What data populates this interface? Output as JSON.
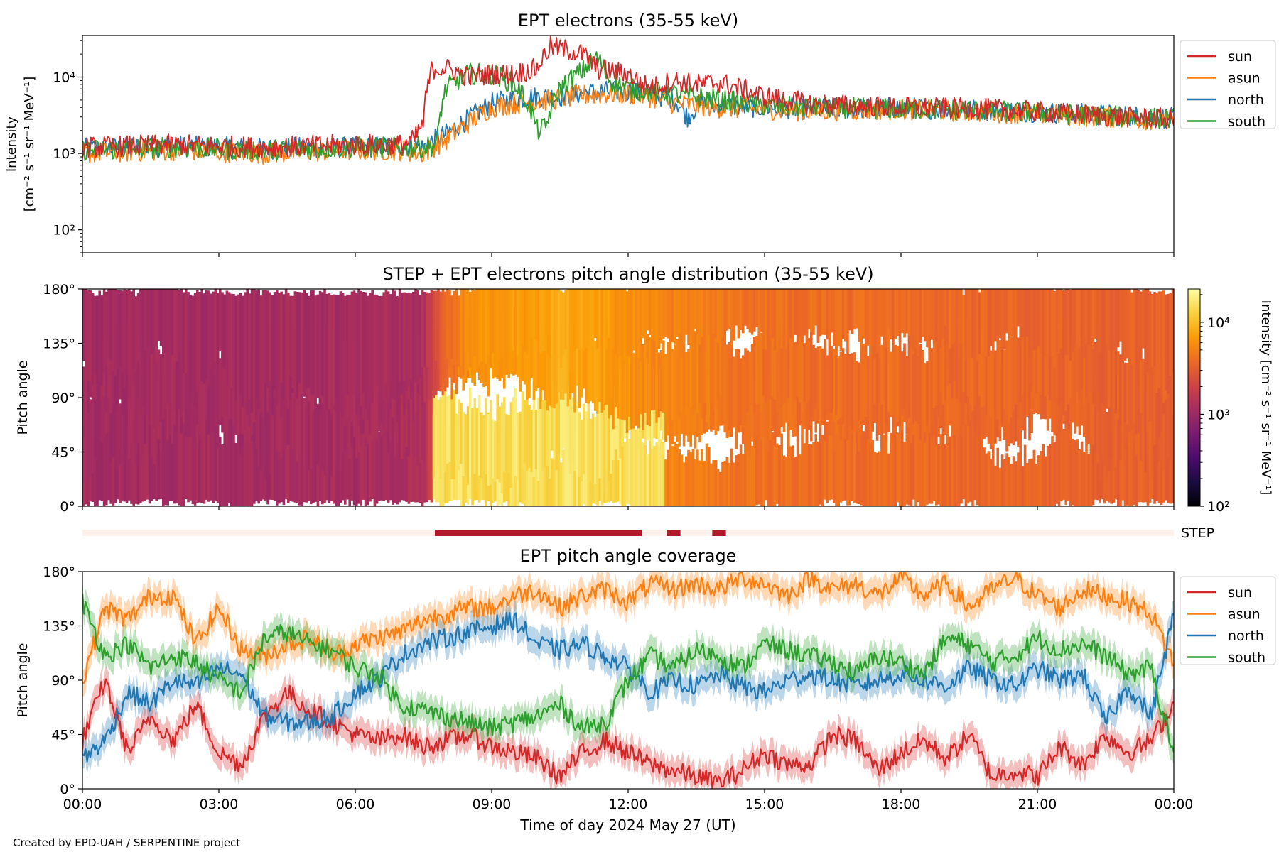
{
  "figure_credit": "Created by EPD-UAH / SERPENTINE project",
  "xlabel": "Time of day 2024 May 27 (UT)",
  "time_ticks": [
    "00:00",
    "03:00",
    "06:00",
    "09:00",
    "12:00",
    "15:00",
    "18:00",
    "21:00",
    "00:00"
  ],
  "colors": {
    "sun": "#d62728",
    "asun": "#ff7f0e",
    "north": "#1f77b4",
    "south": "#2ca02c",
    "step_bar": "#b2182b",
    "step_bg": "#fdf1ec"
  },
  "chart_data": [
    {
      "id": "intensity",
      "type": "line",
      "title": "EPT electrons (35-55 keV)",
      "ylabel_lines": [
        "Intensity",
        "[cm⁻² s⁻¹ sr⁻¹ MeV⁻¹]"
      ],
      "yscale": "log",
      "ylim": [
        50,
        35000
      ],
      "yticks": [
        {
          "value": 100,
          "label": "10²"
        },
        {
          "value": 1000,
          "label": "10³"
        },
        {
          "value": 10000,
          "label": "10⁴"
        }
      ],
      "xlim_hours": [
        0,
        24
      ],
      "legend": {
        "position": "outside-right",
        "entries": [
          "sun",
          "asun",
          "north",
          "south"
        ]
      },
      "series": [
        {
          "name": "sun",
          "color": "#d62728",
          "x": [
            0,
            1,
            2,
            3,
            4,
            5,
            6,
            7,
            7.3,
            7.5,
            7.7,
            8,
            8.5,
            9,
            9.5,
            10,
            10.3,
            10.6,
            11,
            11.3,
            11.6,
            12,
            12.3,
            12.6,
            13,
            13.5,
            14,
            15,
            16,
            17,
            18,
            19,
            20,
            21,
            22,
            23,
            24
          ],
          "y": [
            1200,
            1250,
            1300,
            1250,
            1200,
            1250,
            1300,
            1300,
            1500,
            2500,
            13000,
            13000,
            10000,
            11000,
            11000,
            13000,
            25000,
            23000,
            20000,
            13000,
            12000,
            11000,
            8000,
            7500,
            9000,
            8000,
            8500,
            5500,
            4500,
            4200,
            4000,
            3900,
            3800,
            3500,
            3200,
            3000,
            2800
          ]
        },
        {
          "name": "asun",
          "color": "#ff7f0e",
          "x": [
            0,
            1,
            2,
            3,
            4,
            5,
            6,
            7,
            7.5,
            8,
            8.5,
            9,
            9.5,
            10,
            10.5,
            11,
            11.5,
            12,
            12.5,
            13,
            14,
            15,
            16,
            17,
            18,
            19,
            20,
            21,
            22,
            23,
            24
          ],
          "y": [
            1000,
            1050,
            1100,
            1050,
            1000,
            1050,
            1100,
            1100,
            1000,
            1500,
            2500,
            4000,
            4500,
            4800,
            5200,
            5800,
            6000,
            6000,
            5500,
            4500,
            4000,
            3800,
            3600,
            3700,
            3800,
            3600,
            3500,
            3300,
            3100,
            2900,
            2700
          ]
        },
        {
          "name": "north",
          "color": "#1f77b4",
          "x": [
            0,
            1,
            2,
            3,
            4,
            5,
            6,
            7,
            7.5,
            8,
            8.5,
            9,
            9.5,
            10,
            10.5,
            11,
            11.5,
            12,
            12.5,
            13,
            13.3,
            13.6,
            14,
            15,
            16,
            17,
            18,
            19,
            20,
            21,
            22,
            23,
            24
          ],
          "y": [
            1150,
            1200,
            1250,
            1200,
            1150,
            1200,
            1200,
            1250,
            1200,
            1800,
            2800,
            4500,
            5200,
            5500,
            5600,
            6200,
            6500,
            6500,
            6000,
            5200,
            3000,
            4500,
            4200,
            4000,
            3800,
            3900,
            4000,
            3800,
            3700,
            3500,
            3300,
            3100,
            2900
          ]
        },
        {
          "name": "south",
          "color": "#2ca02c",
          "x": [
            0,
            1,
            2,
            3,
            4,
            5,
            6,
            7,
            7.5,
            7.8,
            8,
            8.5,
            9,
            9.5,
            10,
            10.2,
            10.5,
            11,
            11.3,
            11.6,
            12,
            12.5,
            13,
            14,
            15,
            16,
            17,
            18,
            19,
            20,
            21,
            22,
            23,
            24
          ],
          "y": [
            1100,
            1150,
            1200,
            1150,
            1100,
            1150,
            1200,
            1200,
            1200,
            1300,
            7000,
            11000,
            11000,
            8000,
            2000,
            2200,
            7000,
            12000,
            18000,
            9000,
            7000,
            6500,
            6000,
            5000,
            4200,
            4000,
            3900,
            3800,
            3800,
            3600,
            3400,
            3200,
            3000,
            2800
          ]
        }
      ]
    },
    {
      "id": "pitch_angle_distribution",
      "type": "heatmap",
      "title": "STEP + EPT electrons pitch angle distribution (35-55 keV)",
      "ylabel": "Pitch angle",
      "ylim": [
        0,
        180
      ],
      "yticks": [
        "0°",
        "45°",
        "90°",
        "135°",
        "180°"
      ],
      "xlim_hours": [
        0,
        24
      ],
      "colorbar": {
        "label": "Intensity [cm⁻² s⁻¹ sr⁻¹ MeV⁻¹]",
        "scale": "log",
        "range": [
          100,
          23000
        ],
        "ticks": [
          {
            "value": 100,
            "label": "10²"
          },
          {
            "value": 1000,
            "label": "10³"
          },
          {
            "value": 10000,
            "label": "10⁴"
          }
        ],
        "colormap": [
          "#000004",
          "#1b0c41",
          "#4a0c6b",
          "#781c6d",
          "#a52c60",
          "#cf4446",
          "#ed6925",
          "#fb9b06",
          "#f7d13d",
          "#fcffa4"
        ]
      },
      "intensity_profile": {
        "hours": [
          0,
          6,
          7.5,
          7.8,
          8.5,
          9,
          10,
          10.5,
          11,
          12,
          13,
          15,
          18,
          21,
          24
        ],
        "intensity": [
          1100,
          1150,
          1250,
          2500,
          6000,
          6500,
          7000,
          8500,
          7500,
          6000,
          5000,
          4000,
          3800,
          3500,
          3200
        ],
        "low_pitch_boost_hours": [
          7.7,
          12.8
        ],
        "low_pitch_boost_intensity": 15000
      }
    },
    {
      "id": "step_coverage",
      "type": "bar",
      "label": "STEP",
      "xlim_hours": [
        0,
        24
      ],
      "segments_hours": [
        [
          7.75,
          12.3
        ],
        [
          12.85,
          13.15
        ],
        [
          13.85,
          14.15
        ]
      ]
    },
    {
      "id": "pitch_angle_coverage",
      "type": "line",
      "title": "EPT pitch angle coverage",
      "ylabel": "Pitch angle",
      "ylim": [
        0,
        180
      ],
      "yticks": [
        "0°",
        "45°",
        "90°",
        "135°",
        "180°"
      ],
      "xlim_hours": [
        0,
        24
      ],
      "legend": {
        "position": "outside-right",
        "entries": [
          "sun",
          "asun",
          "north",
          "south"
        ]
      },
      "series": [
        {
          "name": "sun",
          "color": "#d62728",
          "x": [
            0,
            0.5,
            1,
            1.5,
            2,
            2.5,
            3,
            3.5,
            4,
            4.5,
            5,
            5.5,
            6,
            6.5,
            7,
            7.5,
            8,
            8.5,
            9,
            9.5,
            10,
            10.5,
            11,
            11.5,
            12,
            12.5,
            13,
            13.5,
            14,
            14.5,
            15,
            15.5,
            16,
            16.5,
            17,
            17.5,
            18,
            18.5,
            19,
            19.5,
            20,
            20.5,
            21,
            21.5,
            22,
            22.5,
            23,
            23.5,
            24
          ],
          "y": [
            40,
            90,
            30,
            60,
            40,
            70,
            30,
            20,
            60,
            80,
            65,
            55,
            45,
            40,
            45,
            35,
            40,
            45,
            35,
            30,
            25,
            10,
            30,
            40,
            30,
            20,
            15,
            10,
            5,
            15,
            30,
            20,
            20,
            45,
            40,
            15,
            30,
            40,
            25,
            45,
            10,
            15,
            10,
            35,
            20,
            45,
            30,
            40,
            70
          ]
        },
        {
          "name": "asun",
          "color": "#ff7f0e",
          "x": [
            0,
            0.5,
            1,
            1.5,
            2,
            2.5,
            3,
            3.5,
            4,
            4.5,
            5,
            5.5,
            6,
            6.5,
            7,
            7.5,
            8,
            8.5,
            9,
            9.5,
            10,
            10.5,
            11,
            11.5,
            12,
            12.5,
            13,
            13.5,
            14,
            14.5,
            15,
            15.5,
            16,
            16.5,
            17,
            17.5,
            18,
            18.5,
            19,
            19.5,
            20,
            20.5,
            21,
            21.5,
            22,
            22.5,
            23,
            23.5,
            24
          ],
          "y": [
            90,
            150,
            140,
            160,
            160,
            120,
            150,
            115,
            110,
            120,
            125,
            110,
            120,
            125,
            130,
            140,
            145,
            150,
            150,
            160,
            165,
            150,
            160,
            165,
            155,
            170,
            165,
            170,
            165,
            175,
            170,
            160,
            175,
            165,
            170,
            160,
            175,
            160,
            170,
            150,
            165,
            175,
            160,
            150,
            165,
            160,
            155,
            145,
            105
          ]
        },
        {
          "name": "north",
          "color": "#1f77b4",
          "x": [
            0,
            0.5,
            1,
            1.5,
            2,
            2.5,
            3,
            3.5,
            4,
            4.5,
            5,
            5.5,
            6,
            6.5,
            7,
            7.5,
            8,
            8.5,
            9,
            9.5,
            10,
            10.5,
            11,
            11.5,
            12,
            12.5,
            13,
            13.5,
            14,
            14.5,
            15,
            15.5,
            16,
            16.5,
            17,
            17.5,
            18,
            18.5,
            19,
            19.5,
            20,
            20.5,
            21,
            21.5,
            22,
            22.5,
            23,
            23.5,
            24
          ],
          "y": [
            25,
            40,
            80,
            70,
            90,
            85,
            100,
            95,
            60,
            55,
            55,
            60,
            80,
            90,
            110,
            120,
            125,
            130,
            135,
            140,
            120,
            115,
            120,
            110,
            100,
            80,
            90,
            85,
            95,
            85,
            80,
            90,
            95,
            90,
            85,
            90,
            95,
            90,
            85,
            100,
            90,
            85,
            100,
            90,
            95,
            55,
            85,
            60,
            145
          ]
        },
        {
          "name": "south",
          "color": "#2ca02c",
          "x": [
            0,
            0.5,
            1,
            1.5,
            2,
            2.5,
            3,
            3.5,
            4,
            4.5,
            5,
            5.5,
            6,
            6.5,
            7,
            7.5,
            8,
            8.5,
            9,
            9.5,
            10,
            10.5,
            11,
            11.5,
            12,
            12.5,
            13,
            13.5,
            14,
            14.5,
            15,
            15.5,
            16,
            16.5,
            17,
            17.5,
            18,
            18.5,
            19,
            19.5,
            20,
            20.5,
            21,
            21.5,
            22,
            22.5,
            23,
            23.5,
            24
          ],
          "y": [
            155,
            110,
            120,
            100,
            110,
            105,
            90,
            80,
            125,
            130,
            120,
            115,
            100,
            95,
            70,
            65,
            60,
            55,
            50,
            55,
            60,
            70,
            50,
            55,
            90,
            110,
            100,
            115,
            110,
            100,
            120,
            115,
            110,
            105,
            95,
            110,
            105,
            95,
            125,
            120,
            105,
            110,
            125,
            115,
            120,
            110,
            95,
            100,
            30
          ]
        }
      ]
    }
  ]
}
